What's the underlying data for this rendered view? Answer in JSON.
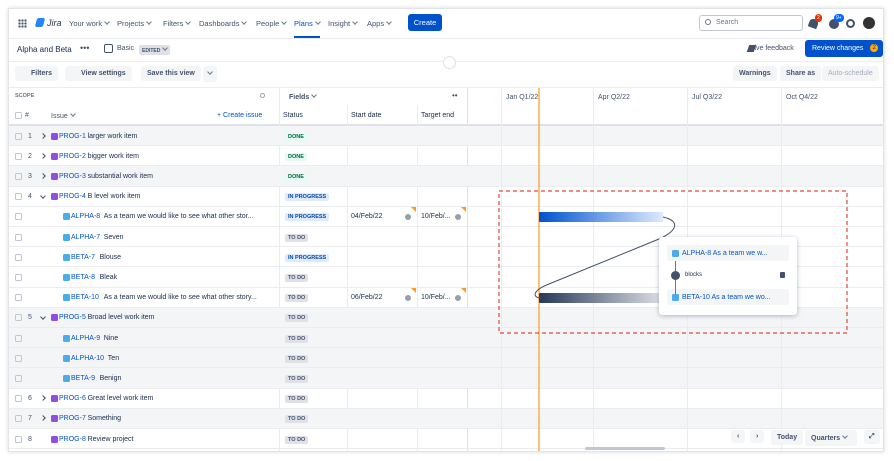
{
  "nav": {
    "product": "Jira",
    "items": [
      "Your work",
      "Projects",
      "Filters",
      "Dashboards",
      "People",
      "Plans",
      "Insight",
      "Apps"
    ],
    "create": "Create",
    "search": "Search",
    "notification_badge": "2",
    "help_badge": "9+"
  },
  "plan": {
    "name": "Alpha and Beta",
    "view": "Basic",
    "view_state": "EDITED",
    "feedback": "Give feedback",
    "review": "Review changes",
    "review_count": "2"
  },
  "toolbar": {
    "filters": "Filters",
    "view_settings": "View settings",
    "save_view": "Save this view",
    "warnings": "Warnings",
    "share": "Share as",
    "auto_schedule": "Auto-schedule"
  },
  "table": {
    "scope": "SCOPE",
    "num_header": "#",
    "issue_header": "Issue",
    "create_issue": "+ Create issue",
    "fields": "Fields",
    "status_header": "Status",
    "start_header": "Start date",
    "end_header": "Target end",
    "rows": [
      {
        "num": 1,
        "key": "PROG-1",
        "summary": "larger work item",
        "status": "DONE",
        "expanded": false
      },
      {
        "num": 2,
        "key": "PROG-2",
        "summary": "bigger work item",
        "status": "DONE",
        "expanded": false
      },
      {
        "num": 3,
        "key": "PROG-3",
        "summary": "substantial work item",
        "status": "DONE",
        "expanded": false
      },
      {
        "num": 4,
        "key": "PROG-4",
        "summary": "B level work item",
        "status": "IN PROGRESS",
        "expanded": true
      },
      {
        "key": "ALPHA-8",
        "summary": "As a team we would like to see what other stor...",
        "status": "IN PROGRESS",
        "start": "04/Feb/22",
        "end": "10/Feb/..."
      },
      {
        "key": "ALPHA-7",
        "summary": "Seven",
        "status": "TO DO"
      },
      {
        "key": "BETA-7",
        "summary": "Blouse",
        "status": "IN PROGRESS"
      },
      {
        "key": "BETA-8",
        "summary": "Bleak",
        "status": "TO DO"
      },
      {
        "key": "BETA-10",
        "summary": "As a team we would like to see what other story...",
        "status": "TO DO",
        "start": "06/Feb/22",
        "end": "10/Feb/..."
      },
      {
        "num": 5,
        "key": "PROG-5",
        "summary": "Broad level work item",
        "status": "TO DO",
        "expanded": true
      },
      {
        "key": "ALPHA-9",
        "summary": "Nine",
        "status": "TO DO"
      },
      {
        "key": "ALPHA-10",
        "summary": "Ten",
        "status": "TO DO"
      },
      {
        "key": "BETA-9",
        "summary": "Benign",
        "status": "TO DO"
      },
      {
        "num": 6,
        "key": "PROG-6",
        "summary": "Great level work item",
        "status": "TO DO",
        "expanded": false
      },
      {
        "num": 7,
        "key": "PROG-7",
        "summary": "Something",
        "status": "TO DO",
        "expanded": false
      },
      {
        "num": 8,
        "key": "PROG-8",
        "summary": "Review project",
        "status": "TO DO"
      }
    ]
  },
  "timeline": {
    "quarters": [
      "Jan Q1/22",
      "Apr Q2/22",
      "Jul Q3/22",
      "Oct Q4/22"
    ],
    "today": "Today",
    "scale": "Quarters"
  },
  "dependency": {
    "from": "ALPHA-8 As a team we w...",
    "relation": "blocks",
    "to": "BETA-10 As a team we wo..."
  }
}
